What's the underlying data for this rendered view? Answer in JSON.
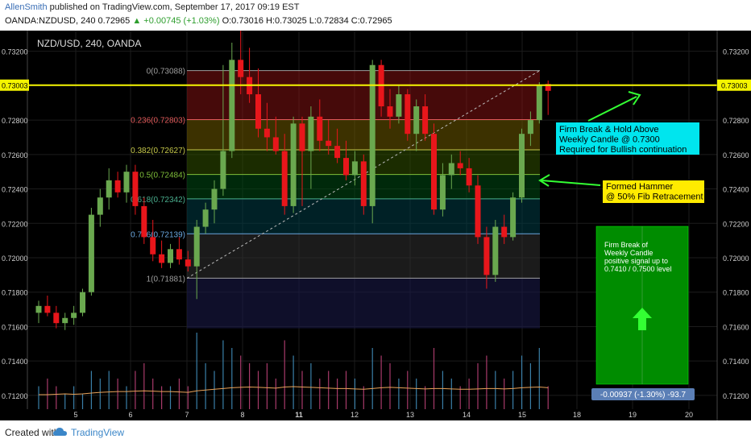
{
  "header": {
    "author": "AllenSmith",
    "published_text": "published on TradingView.com, September 17, 2017 09:19 EST",
    "symbol_line": "OANDA:NZDUSD, 240  0.72965",
    "change_text": "▲ +0.00745 (+1.03%)",
    "ohlc_text": "O:0.73016 H:0.73025 L:0.72834 C:0.72965"
  },
  "footer": {
    "created_with": "Created with",
    "brand": "TradingView"
  },
  "colors": {
    "background": "#000000",
    "bull_candle": "#6aa84f",
    "bear_candle": "#e8161b",
    "resistance_line": "#f5f500",
    "volume_avg": "#e8a25a",
    "note_cyan": "#00e5ee",
    "note_yellow": "#ffeb00",
    "note_green": "#008c00",
    "arrow_green": "#33ff33"
  },
  "chart_data": {
    "type": "candlestick",
    "title": "NZD/USD, 240, OANDA",
    "ylim": [
      0.7112,
      0.7332
    ],
    "y_ticks": [
      "0.73200",
      "0.73000",
      "0.72800",
      "0.72600",
      "0.72400",
      "0.72200",
      "0.72000",
      "0.71800",
      "0.71600",
      "0.71400",
      "0.71200"
    ],
    "x_ticks": [
      "5",
      "6",
      "7",
      "8",
      "11",
      "12",
      "13",
      "14",
      "15",
      "18",
      "19",
      "20"
    ],
    "bold_x_ticks": [
      "11"
    ],
    "price_tag": "0.73003",
    "resistance_level": 0.73003,
    "fib_levels": [
      {
        "label": "0(0.73088)",
        "value": 0.73088,
        "color": "#9e9e9e",
        "band": "rgba(140,20,20,0.5)"
      },
      {
        "label": "0.236(0.72803)",
        "value": 0.72803,
        "color": "#e05a5a",
        "band": "rgba(110,90,0,0.55)"
      },
      {
        "label": "0.382(0.72627)",
        "value": 0.72627,
        "color": "#c6c84a",
        "band": "rgba(50,80,0,0.55)"
      },
      {
        "label": "0.5(0.72484)",
        "value": 0.72484,
        "color": "#7fbf3a",
        "band": "rgba(0,75,20,0.55)"
      },
      {
        "label": "0.618(0.72342)",
        "value": 0.72342,
        "color": "#4aae8e",
        "band": "rgba(0,60,70,0.55)"
      },
      {
        "label": "0.786(0.72139)",
        "value": 0.72139,
        "color": "#6aa8e0",
        "band": "rgba(50,50,50,0.55)"
      },
      {
        "label": "1(0.71881)",
        "value": 0.71881,
        "color": "#9e9e9e",
        "band": "rgba(25,25,70,0.6)"
      }
    ],
    "candles": [
      {
        "o": 0.7168,
        "h": 0.7175,
        "l": 0.7162,
        "c": 0.7172
      },
      {
        "o": 0.7172,
        "h": 0.7178,
        "l": 0.7166,
        "c": 0.7168
      },
      {
        "o": 0.7168,
        "h": 0.7172,
        "l": 0.7159,
        "c": 0.7162
      },
      {
        "o": 0.7162,
        "h": 0.7168,
        "l": 0.7158,
        "c": 0.7165
      },
      {
        "o": 0.7165,
        "h": 0.7172,
        "l": 0.7161,
        "c": 0.7168
      },
      {
        "o": 0.7168,
        "h": 0.7182,
        "l": 0.7166,
        "c": 0.718
      },
      {
        "o": 0.718,
        "h": 0.7229,
        "l": 0.7178,
        "c": 0.7225
      },
      {
        "o": 0.7225,
        "h": 0.724,
        "l": 0.7218,
        "c": 0.7235
      },
      {
        "o": 0.7235,
        "h": 0.7252,
        "l": 0.7228,
        "c": 0.7245
      },
      {
        "o": 0.7245,
        "h": 0.725,
        "l": 0.7235,
        "c": 0.7238
      },
      {
        "o": 0.7238,
        "h": 0.7254,
        "l": 0.7232,
        "c": 0.725
      },
      {
        "o": 0.725,
        "h": 0.7254,
        "l": 0.7225,
        "c": 0.723
      },
      {
        "o": 0.723,
        "h": 0.7235,
        "l": 0.7208,
        "c": 0.7212
      },
      {
        "o": 0.7212,
        "h": 0.7222,
        "l": 0.7198,
        "c": 0.7202
      },
      {
        "o": 0.7202,
        "h": 0.721,
        "l": 0.7194,
        "c": 0.7197
      },
      {
        "o": 0.7197,
        "h": 0.7208,
        "l": 0.7194,
        "c": 0.7205
      },
      {
        "o": 0.7205,
        "h": 0.7212,
        "l": 0.7196,
        "c": 0.7199
      },
      {
        "o": 0.7199,
        "h": 0.7204,
        "l": 0.7192,
        "c": 0.7195
      },
      {
        "o": 0.7195,
        "h": 0.7222,
        "l": 0.7176,
        "c": 0.7218
      },
      {
        "o": 0.7218,
        "h": 0.7232,
        "l": 0.7214,
        "c": 0.7228
      },
      {
        "o": 0.7228,
        "h": 0.7245,
        "l": 0.722,
        "c": 0.724
      },
      {
        "o": 0.724,
        "h": 0.7312,
        "l": 0.7236,
        "c": 0.7262
      },
      {
        "o": 0.7262,
        "h": 0.7325,
        "l": 0.7258,
        "c": 0.7315
      },
      {
        "o": 0.7315,
        "h": 0.7335,
        "l": 0.7295,
        "c": 0.7305
      },
      {
        "o": 0.7305,
        "h": 0.7322,
        "l": 0.729,
        "c": 0.7295
      },
      {
        "o": 0.7295,
        "h": 0.731,
        "l": 0.727,
        "c": 0.7275
      },
      {
        "o": 0.7275,
        "h": 0.729,
        "l": 0.7262,
        "c": 0.727
      },
      {
        "o": 0.727,
        "h": 0.7282,
        "l": 0.726,
        "c": 0.7262
      },
      {
        "o": 0.7262,
        "h": 0.7272,
        "l": 0.7225,
        "c": 0.723
      },
      {
        "o": 0.723,
        "h": 0.7282,
        "l": 0.7226,
        "c": 0.7278
      },
      {
        "o": 0.7278,
        "h": 0.7282,
        "l": 0.723,
        "c": 0.7262
      },
      {
        "o": 0.7262,
        "h": 0.7288,
        "l": 0.724,
        "c": 0.7282
      },
      {
        "o": 0.7282,
        "h": 0.7292,
        "l": 0.7262,
        "c": 0.7268
      },
      {
        "o": 0.7268,
        "h": 0.728,
        "l": 0.726,
        "c": 0.7265
      },
      {
        "o": 0.7265,
        "h": 0.7275,
        "l": 0.7255,
        "c": 0.7258
      },
      {
        "o": 0.7258,
        "h": 0.7268,
        "l": 0.7245,
        "c": 0.7248
      },
      {
        "o": 0.7248,
        "h": 0.7262,
        "l": 0.7242,
        "c": 0.7256
      },
      {
        "o": 0.7256,
        "h": 0.726,
        "l": 0.7225,
        "c": 0.723
      },
      {
        "o": 0.723,
        "h": 0.7315,
        "l": 0.722,
        "c": 0.7312
      },
      {
        "o": 0.7312,
        "h": 0.7315,
        "l": 0.7282,
        "c": 0.7288
      },
      {
        "o": 0.7288,
        "h": 0.7298,
        "l": 0.7275,
        "c": 0.7282
      },
      {
        "o": 0.7282,
        "h": 0.73,
        "l": 0.7278,
        "c": 0.7295
      },
      {
        "o": 0.7295,
        "h": 0.7298,
        "l": 0.7268,
        "c": 0.7272
      },
      {
        "o": 0.7272,
        "h": 0.7292,
        "l": 0.7262,
        "c": 0.7288
      },
      {
        "o": 0.7288,
        "h": 0.7295,
        "l": 0.7268,
        "c": 0.7272
      },
      {
        "o": 0.7272,
        "h": 0.7278,
        "l": 0.7225,
        "c": 0.7228
      },
      {
        "o": 0.7228,
        "h": 0.7255,
        "l": 0.7224,
        "c": 0.7248
      },
      {
        "o": 0.7248,
        "h": 0.726,
        "l": 0.724,
        "c": 0.7255
      },
      {
        "o": 0.7255,
        "h": 0.7262,
        "l": 0.7248,
        "c": 0.7252
      },
      {
        "o": 0.7252,
        "h": 0.7258,
        "l": 0.7238,
        "c": 0.7242
      },
      {
        "o": 0.7242,
        "h": 0.7248,
        "l": 0.7208,
        "c": 0.7212
      },
      {
        "o": 0.7212,
        "h": 0.7218,
        "l": 0.7182,
        "c": 0.719
      },
      {
        "o": 0.719,
        "h": 0.7222,
        "l": 0.7186,
        "c": 0.7218
      },
      {
        "o": 0.7218,
        "h": 0.7225,
        "l": 0.7208,
        "c": 0.7212
      },
      {
        "o": 0.7212,
        "h": 0.7238,
        "l": 0.721,
        "c": 0.7235
      },
      {
        "o": 0.7235,
        "h": 0.7275,
        "l": 0.7232,
        "c": 0.7272
      },
      {
        "o": 0.7272,
        "h": 0.7285,
        "l": 0.7265,
        "c": 0.728
      },
      {
        "o": 0.728,
        "h": 0.7302,
        "l": 0.7278,
        "c": 0.73
      },
      {
        "o": 0.7301,
        "h": 0.7303,
        "l": 0.7283,
        "c": 0.7297
      }
    ],
    "volume": [
      3,
      4,
      3,
      2,
      3,
      2,
      5,
      4,
      5,
      4,
      3,
      5,
      6,
      4,
      3,
      3,
      4,
      3,
      10,
      6,
      5,
      9,
      8,
      7,
      6,
      5,
      6,
      4,
      9,
      7,
      5,
      6,
      4,
      5,
      4,
      5,
      4,
      3,
      8,
      7,
      6,
      4,
      5,
      4,
      3,
      8,
      5,
      4,
      3,
      4,
      6,
      7,
      5,
      4,
      5,
      7,
      6,
      8,
      3
    ],
    "volume_avg": [
      1.9,
      1.9,
      1.95,
      2.0,
      1.95,
      2.0,
      2.1,
      2.2,
      2.25,
      2.3,
      2.3,
      2.35,
      2.4,
      2.35,
      2.3,
      2.3,
      2.25,
      2.2,
      2.4,
      2.5,
      2.6,
      2.7,
      2.8,
      2.85,
      2.9,
      2.85,
      2.8,
      2.75,
      2.9,
      2.95,
      2.9,
      2.85,
      2.8,
      2.75,
      2.7,
      2.7,
      2.65,
      2.6,
      2.7,
      2.8,
      2.85,
      2.8,
      2.75,
      2.7,
      2.65,
      2.7,
      2.7,
      2.65,
      2.6,
      2.6,
      2.65,
      2.7,
      2.7,
      2.65,
      2.7,
      2.8,
      2.85,
      2.9,
      2.8
    ]
  },
  "annotations": {
    "firm_break": [
      "Firm Break & Hold Above",
      "Weekly Candle @ 0.7300",
      "Required for Bullish continuation"
    ],
    "hammer": [
      "Formed Hammer",
      "@ 50% Fib Retracement"
    ],
    "green_box": [
      "Firm Break of",
      "Weekly Candle",
      "positive signal up to",
      "0.7410 / 0.7500 level"
    ],
    "measure": "-0.00937 (-1.30%) -93.7"
  }
}
